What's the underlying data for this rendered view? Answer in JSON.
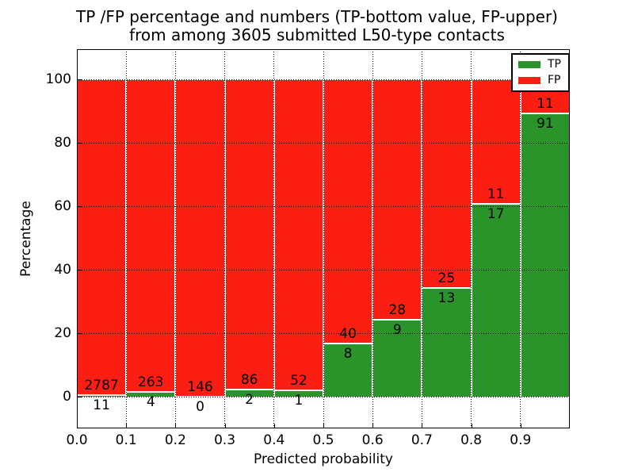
{
  "title": {
    "line1": "TP /FP percentage and numbers (TP-bottom value, FP-upper)",
    "line2": "from among 3605 submitted L50-type contacts"
  },
  "chart_data": {
    "type": "bar",
    "stacked": true,
    "normalized": "each bin scaled to 100%",
    "title": "TP /FP percentage and numbers (TP-bottom value, FP-upper) from among 3605 submitted L50-type contacts",
    "xlabel": "Predicted probability",
    "ylabel": "Percentage",
    "total_submitted_contacts": 3605,
    "bins": [
      "0.0-0.1",
      "0.1-0.2",
      "0.2-0.3",
      "0.3-0.4",
      "0.4-0.5",
      "0.5-0.6",
      "0.6-0.7",
      "0.7-0.8",
      "0.8-0.9",
      "0.9-1.0"
    ],
    "series": [
      {
        "name": "TP",
        "color": "#2a932a",
        "counts": [
          11,
          4,
          0,
          2,
          1,
          8,
          9,
          13,
          17,
          91
        ]
      },
      {
        "name": "FP",
        "color": "#fb1f13",
        "counts": [
          2787,
          263,
          146,
          86,
          52,
          40,
          28,
          25,
          11,
          11
        ]
      }
    ],
    "tp_percent_heights": [
      0.39,
      1.5,
      0.0,
      2.27,
      1.89,
      16.67,
      24.32,
      34.21,
      60.71,
      89.22
    ],
    "x_ticks": [
      "0.0",
      "0.1",
      "0.2",
      "0.3",
      "0.4",
      "0.5",
      "0.6",
      "0.7",
      "0.8",
      "0.9"
    ],
    "y_ticks": [
      0,
      20,
      40,
      60,
      80,
      100
    ],
    "xlim": [
      0.0,
      1.0
    ],
    "ylim": [
      -10,
      109.5
    ],
    "grid": "dotted, both axes",
    "legend": {
      "position": "upper right",
      "entries": [
        {
          "label": "TP",
          "color": "#2a932a"
        },
        {
          "label": "FP",
          "color": "#fb1f13"
        }
      ]
    }
  },
  "colors": {
    "tp_green": "#2a932a",
    "fp_red": "#fb1f13",
    "grid": "#000000",
    "background": "#ffffff"
  }
}
